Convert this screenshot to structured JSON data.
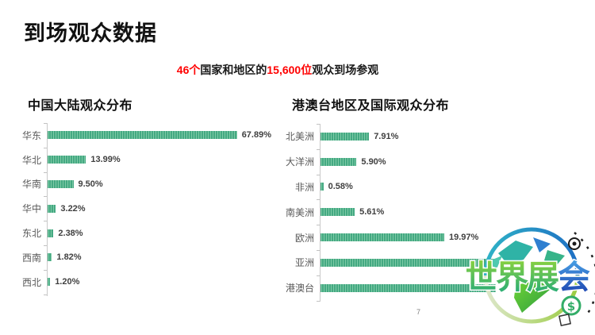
{
  "page": {
    "title": "到场观众数据",
    "page_number": "7",
    "subtitle": {
      "segments": [
        {
          "text": "46个",
          "color": "#ff0000"
        },
        {
          "text": "国家和地区的",
          "color": "#1a1a1a"
        },
        {
          "text": "15,600位",
          "color": "#ff0000"
        },
        {
          "text": "观众到场参观",
          "color": "#1a1a1a"
        }
      ]
    }
  },
  "colors": {
    "bar_green": "#44a982",
    "bar_green_stripe": "#7ecaa6",
    "axis_gray": "#c9c9c9",
    "category_label": "#595959",
    "value_label": "#404040",
    "accent_red": "#ff0000"
  },
  "chart_data": [
    {
      "type": "bar",
      "orientation": "horizontal",
      "title": "中国大陆观众分布",
      "categories": [
        "华东",
        "华北",
        "华南",
        "华中",
        "东北",
        "西南",
        "西北"
      ],
      "values": [
        67.89,
        13.99,
        9.5,
        3.22,
        2.38,
        1.82,
        1.2
      ],
      "labels": [
        "67.89%",
        "13.99%",
        "9.50%",
        "3.22%",
        "2.38%",
        "1.82%",
        "1.20%"
      ],
      "xlim": [
        0,
        70
      ],
      "grid": false,
      "legend": false
    },
    {
      "type": "bar",
      "orientation": "horizontal",
      "title": "港澳台地区及国际观众分布",
      "categories": [
        "北美洲",
        "大洋洲",
        "非洲",
        "南美洲",
        "欧洲",
        "亚洲",
        "港澳台"
      ],
      "values": [
        7.91,
        5.9,
        0.58,
        5.61,
        19.97,
        28.0,
        28.3
      ],
      "labels": [
        "7.91%",
        "5.90%",
        "0.58%",
        "5.61%",
        "19.97%",
        "",
        ""
      ],
      "labels_hidden_by_watermark": [
        "亚洲",
        "港澳台"
      ],
      "xlim": [
        0,
        30
      ],
      "grid": false,
      "legend": false
    }
  ],
  "watermark": {
    "text_green": "世界展",
    "text_blue": "会",
    "dollar": "$"
  }
}
